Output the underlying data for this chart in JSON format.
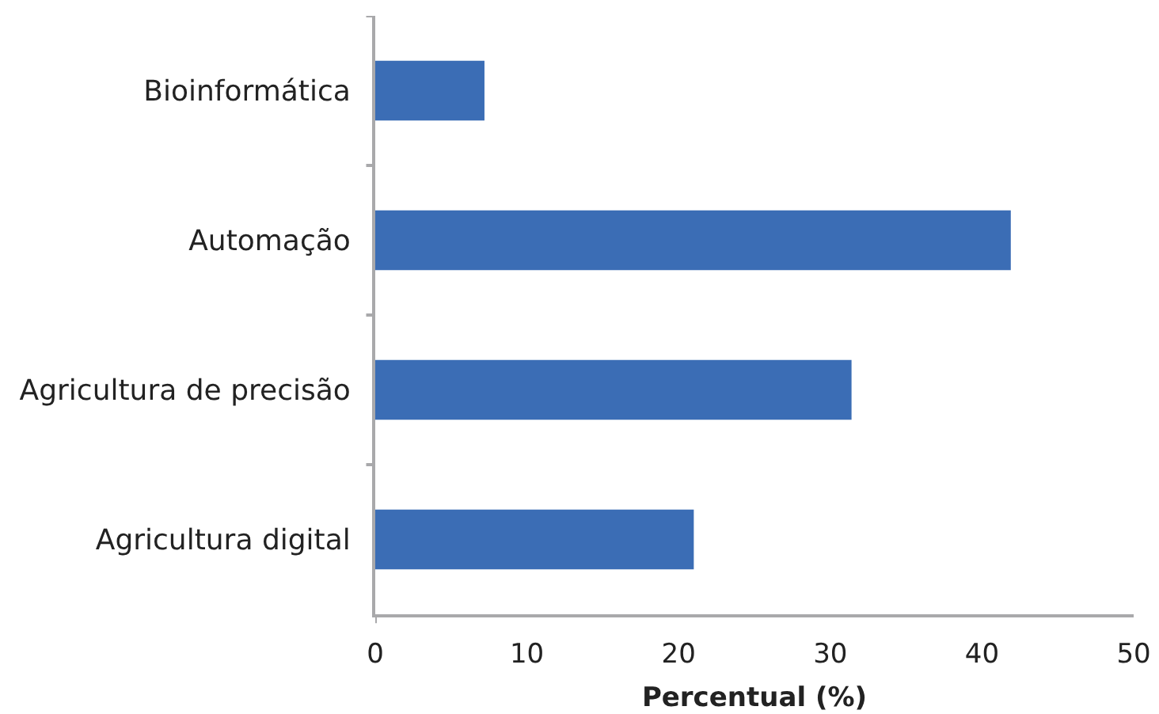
{
  "chart_data": {
    "type": "bar",
    "orientation": "horizontal",
    "categories": [
      "Bioinformática",
      "Automação",
      "Agricultura de precisão",
      "Agricultura digital"
    ],
    "values": [
      7.2,
      41.9,
      31.4,
      21.0
    ],
    "color": "#3b6db5",
    "xlabel": "Percentual (%)",
    "xlim": [
      0,
      50
    ],
    "xticks": [
      0,
      10,
      20,
      30,
      40,
      50
    ],
    "grid": false
  }
}
